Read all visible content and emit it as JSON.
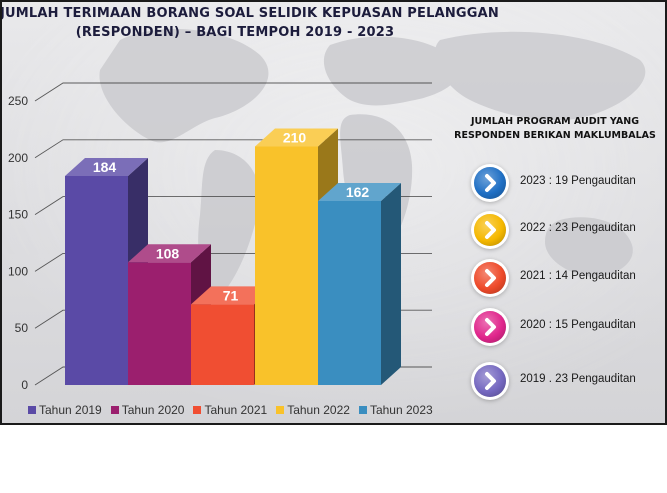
{
  "chart_data": {
    "type": "bar",
    "title": "JUMLAH TERIMAAN BORANG SOAL SELIDIK KEPUASAN PELANGGAN",
    "subtitle": "(RESPONDEN) – BAGI TEMPOH 2019 - 2023",
    "categories": [
      "Tahun 2019",
      "Tahun 2020",
      "Tahun 2021",
      "Tahun 2022",
      "Tahun 2023"
    ],
    "values": [
      184,
      108,
      71,
      210,
      162
    ],
    "data_labels": [
      "184",
      "108",
      "71",
      "210",
      "162"
    ],
    "colors": [
      "#5a4aa6",
      "#9b1f6e",
      "#f04e32",
      "#f9c22a",
      "#3a8ec0"
    ],
    "ylim": [
      0,
      250
    ],
    "yticks": [
      0,
      50,
      100,
      150,
      200,
      250
    ],
    "ytick_labels": [
      "0",
      "50",
      "100",
      "150",
      "200",
      "250"
    ],
    "xlabel": "",
    "ylabel": "",
    "grid": true,
    "legend_position": "bottom",
    "style": "3d-column"
  },
  "side_panel": {
    "title_line1": "JUMLAH PROGRAM AUDIT YANG",
    "title_line2": "RESPONDEN BERIKAN MAKLUMBALAS",
    "items": [
      {
        "label": "2023 : 19 Pengauditan",
        "color": "#1f6fc4",
        "icon": "chevron-right-icon"
      },
      {
        "label": "2022 : 23 Pengauditan",
        "color": "#f5b800",
        "icon": "chevron-right-icon"
      },
      {
        "label": "2021 : 14 Pengauditan",
        "color": "#ee4a2a",
        "icon": "chevron-right-icon"
      },
      {
        "label": "2020 : 15 Pengauditan",
        "color": "#e0268c",
        "icon": "chevron-right-icon"
      },
      {
        "label": "2019 . 23 Pengauditan",
        "color": "#7467c0",
        "icon": "chevron-right-icon"
      }
    ]
  }
}
